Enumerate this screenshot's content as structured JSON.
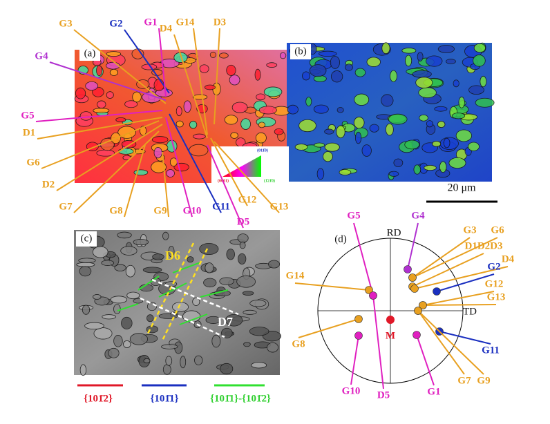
{
  "panels": {
    "a": {
      "label": "(a)",
      "annotations": [
        "G3",
        "G2",
        "G1",
        "D4",
        "G14",
        "D3",
        "G4",
        "G5",
        "D1",
        "G6",
        "D2",
        "G7",
        "G8",
        "G9",
        "G10",
        "G11",
        "G12",
        "G13",
        "D5"
      ],
      "ipf_key": [
        "(011̄0)",
        "(0001)",
        "(1̄21̄0)"
      ]
    },
    "b": {
      "label": "(b)",
      "scale_bar": "20 μm"
    },
    "c": {
      "label": "(c)",
      "annotations": [
        "D6",
        "D7"
      ],
      "legend": [
        "{101̄2}",
        "{101̄1}",
        "{101̄1}-{101̄2}"
      ]
    },
    "d": {
      "label": "(d)",
      "axes": [
        "RD",
        "TD"
      ],
      "center": "M",
      "annotations": [
        "G5",
        "G4",
        "G3",
        "G6",
        "D1D2D3",
        "D4",
        "G2",
        "G14",
        "G12",
        "G13",
        "G8",
        "G11",
        "G10",
        "D5",
        "G1",
        "G7",
        "G9"
      ]
    }
  }
}
